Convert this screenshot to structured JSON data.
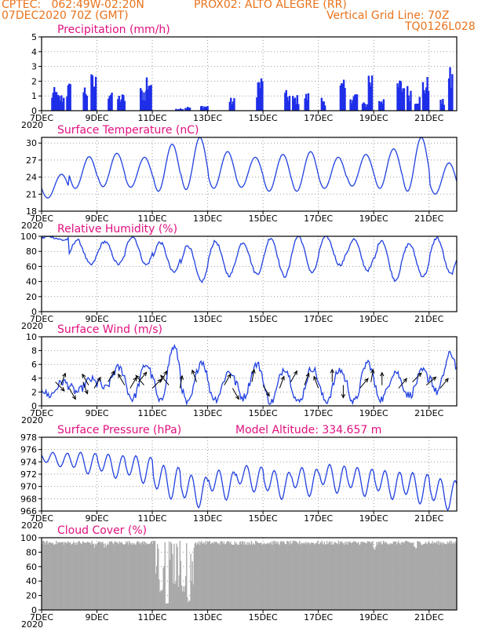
{
  "header": {
    "line1_left": "CPTEC:   062:49W-02:20N",
    "line1_right": "PROX02: ALTO ALEGRE (RR)",
    "line2_left": "07DEC2020 70Z (GMT)",
    "line2_right": "Vertical Grid Line: 70Z",
    "line3_right": "TQ0126L028"
  },
  "colors": {
    "header": "#e8731c",
    "title": "#e0107f",
    "series": "#2040e0",
    "precip": "#1f2fe8",
    "cloud": "#a9a9a9",
    "grid": "#9a9a9a"
  },
  "x_axis": {
    "day_range": [
      7,
      22
    ],
    "tick_days": [
      7,
      9,
      11,
      13,
      15,
      17,
      19,
      21
    ],
    "tick_labels": [
      "7DEC",
      "9DEC",
      "11DEC",
      "13DEC",
      "15DEC",
      "17DEC",
      "19DEC",
      "21DEC"
    ],
    "year_label": "2020"
  },
  "chart_data": [
    {
      "type": "bar",
      "title": "Precipitation (mm/h)",
      "ylim": [
        0,
        5
      ],
      "yticks": [
        0,
        1,
        2,
        3,
        4,
        5
      ],
      "bursts": [
        {
          "day": 7.5,
          "peak": 1.6
        },
        {
          "day": 7.7,
          "peak": 1.2
        },
        {
          "day": 8.0,
          "peak": 2.0
        },
        {
          "day": 8.6,
          "peak": 1.9
        },
        {
          "day": 8.9,
          "peak": 2.6
        },
        {
          "day": 9.5,
          "peak": 1.8
        },
        {
          "day": 9.9,
          "peak": 1.2
        },
        {
          "day": 10.7,
          "peak": 1.7
        },
        {
          "day": 10.9,
          "peak": 2.8
        },
        {
          "day": 12.0,
          "peak": 0.2
        },
        {
          "day": 12.3,
          "peak": 0.3
        },
        {
          "day": 12.9,
          "peak": 0.4
        },
        {
          "day": 13.9,
          "peak": 0.9
        },
        {
          "day": 14.9,
          "peak": 2.5
        },
        {
          "day": 15.9,
          "peak": 1.4
        },
        {
          "day": 16.2,
          "peak": 1.1
        },
        {
          "day": 16.6,
          "peak": 1.3
        },
        {
          "day": 17.2,
          "peak": 1.0
        },
        {
          "day": 17.9,
          "peak": 2.1
        },
        {
          "day": 18.3,
          "peak": 1.4
        },
        {
          "day": 18.7,
          "peak": 0.6
        },
        {
          "day": 18.9,
          "peak": 3.0
        },
        {
          "day": 19.3,
          "peak": 1.1
        },
        {
          "day": 20.0,
          "peak": 2.3
        },
        {
          "day": 20.3,
          "peak": 1.8
        },
        {
          "day": 20.6,
          "peak": 1.1
        },
        {
          "day": 20.9,
          "peak": 2.4
        },
        {
          "day": 21.5,
          "peak": 0.8
        },
        {
          "day": 21.8,
          "peak": 3.0
        }
      ]
    },
    {
      "type": "line",
      "title": "Surface Temperature (nC)",
      "ylim": [
        18,
        31
      ],
      "yticks": [
        18,
        21,
        24,
        27,
        30
      ],
      "min_values": [
        20.3,
        22.0,
        22.3,
        22.2,
        21.5,
        21.8,
        22.0,
        22.2,
        21.5,
        21.5,
        22.0,
        22.4,
        22.0,
        21.5,
        21.0
      ],
      "max_values": [
        24.5,
        27.6,
        28.2,
        27.5,
        29.8,
        31.0,
        28.5,
        27.5,
        28.0,
        28.5,
        27.5,
        28.0,
        29.0,
        31.0,
        26.5
      ]
    },
    {
      "type": "line",
      "title": "Relative Humidity (%)",
      "ylim": [
        0,
        100
      ],
      "yticks": [
        0,
        20,
        40,
        60,
        80,
        100
      ],
      "min_values": [
        95,
        62,
        63,
        62,
        52,
        40,
        48,
        50,
        47,
        52,
        62,
        55,
        42,
        47,
        50
      ],
      "max_values": [
        100,
        95,
        93,
        100,
        92,
        88,
        93,
        92,
        98,
        100,
        100,
        96,
        95,
        90,
        98
      ]
    },
    {
      "type": "line",
      "title": "Surface Wind (m/s)",
      "ylim": [
        0,
        10
      ],
      "yticks": [
        0,
        2,
        4,
        6,
        8,
        10
      ],
      "daily_low": [
        1.5,
        2.0,
        2.5,
        1.0,
        0.5,
        0.3,
        1.0,
        1.2,
        0.5,
        0.5,
        0.7,
        0.5,
        1.0,
        1.5,
        2.0
      ],
      "daily_high": [
        3.5,
        3.8,
        5.5,
        6.0,
        8.5,
        6.5,
        5.0,
        6.0,
        5.5,
        5.5,
        5.2,
        6.3,
        5.0,
        5.0,
        7.5
      ],
      "vector_days": [
        7.5,
        7.7,
        8.0,
        8.5,
        8.7,
        8.9,
        9.4,
        10.0,
        10.2,
        10.5,
        10.7,
        11.0,
        11.3,
        11.6,
        12.0,
        12.6,
        13.6,
        13.9,
        14.6,
        15.0,
        15.6,
        16.0,
        16.5,
        17.0,
        17.5,
        17.9,
        18.5,
        18.9,
        19.3,
        19.9,
        20.4,
        20.9,
        21.4
      ],
      "vector_dirs_deg": [
        315,
        70,
        300,
        290,
        120,
        60,
        60,
        120,
        60,
        50,
        130,
        45,
        60,
        130,
        80,
        110,
        60,
        300,
        80,
        300,
        70,
        60,
        70,
        110,
        90,
        270,
        50,
        80,
        90,
        50,
        45,
        40,
        50
      ]
    },
    {
      "type": "line",
      "title": "Surface Pressure (hPa)",
      "annotation": "Model Altitude: 334.657 m",
      "ylim": [
        966,
        978
      ],
      "yticks": [
        966,
        968,
        970,
        972,
        974,
        976,
        978
      ],
      "daily_mean": [
        974.5,
        974.0,
        973.5,
        973.0,
        971.0,
        969.5,
        970.5,
        971.5,
        970.5,
        971.0,
        971.5,
        971.0,
        970.5,
        970.0,
        969.0
      ],
      "amplitude": [
        1.2,
        1.8,
        2.0,
        2.3,
        2.8,
        2.7,
        2.5,
        2.2,
        2.4,
        2.4,
        2.4,
        2.4,
        2.4,
        2.6,
        2.6
      ]
    },
    {
      "type": "area",
      "title": "Cloud Cover (%)",
      "ylim": [
        0,
        100
      ],
      "yticks": [
        0,
        20,
        40,
        60,
        80,
        100
      ],
      "baseline": 93,
      "notches": [
        {
          "day": 11.3,
          "value": 20
        },
        {
          "day": 11.5,
          "value": 5
        },
        {
          "day": 12.1,
          "value": 25
        },
        {
          "day": 12.3,
          "value": 10
        },
        {
          "day": 8.9,
          "value": 84
        },
        {
          "day": 9.3,
          "value": 85
        },
        {
          "day": 19.0,
          "value": 82
        },
        {
          "day": 20.5,
          "value": 82
        }
      ]
    }
  ]
}
